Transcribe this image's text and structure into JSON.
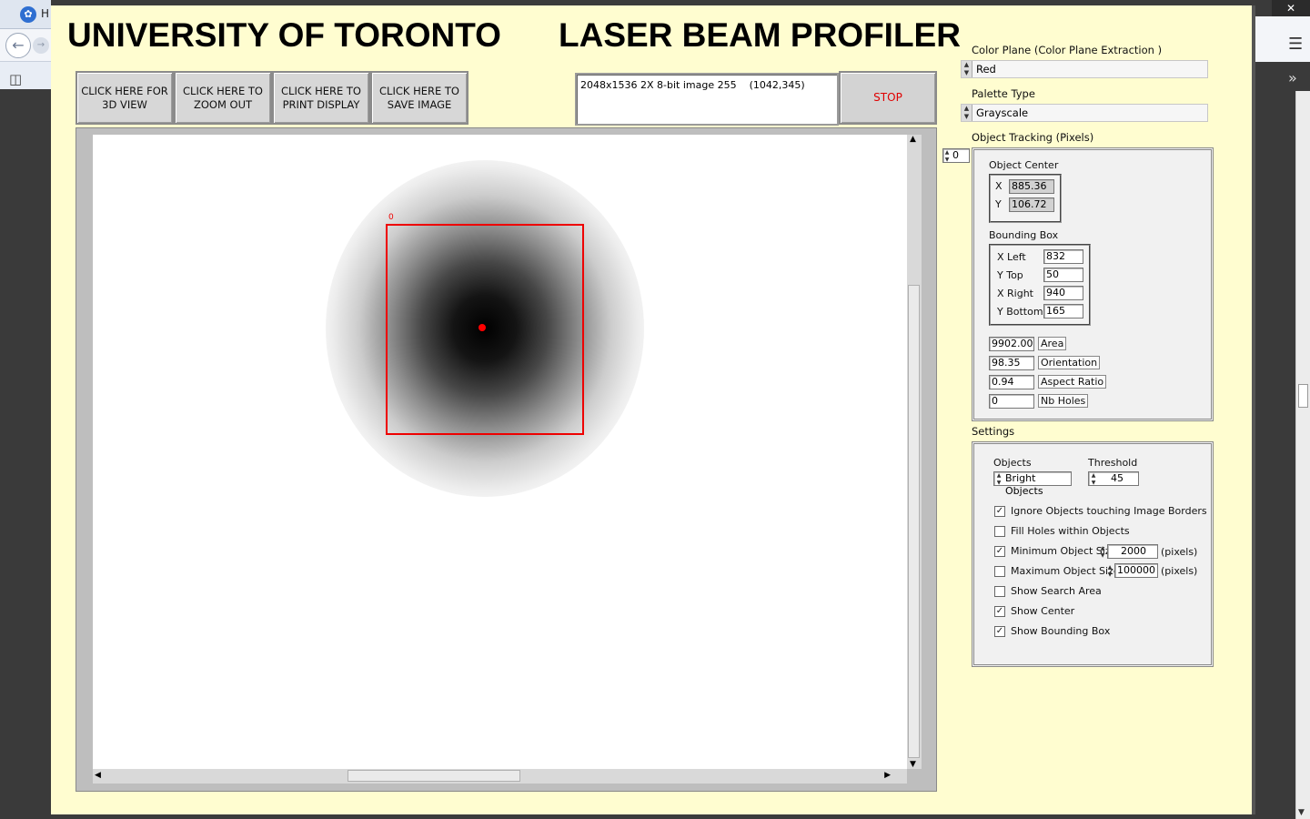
{
  "browser": {
    "tab_title": "H",
    "tab_icon": "labview-icon",
    "close_symbol": "✕",
    "menu_symbol": "☰",
    "more_symbol": "»"
  },
  "header": {
    "university": "UNIVERSITY OF TORONTO",
    "app_title": "LASER BEAM PROFILER"
  },
  "toolbar": {
    "btn_3d": [
      "CLICK HERE FOR",
      "3D VIEW"
    ],
    "btn_zoom": [
      "CLICK HERE TO",
      "ZOOM OUT"
    ],
    "btn_print": [
      "CLICK HERE TO",
      "PRINT DISPLAY"
    ],
    "btn_save": [
      "CLICK HERE TO",
      "SAVE IMAGE"
    ],
    "image_info": "2048x1536 2X 8-bit image 255    (1042,345)",
    "stop_label": "STOP"
  },
  "image": {
    "bbox_index_label": "0"
  },
  "controls": {
    "color_plane_label": "Color Plane (Color Plane Extraction )",
    "color_plane_value": "Red",
    "palette_label": "Palette Type",
    "palette_value": "Grayscale",
    "object_tracking_label": "Object Tracking (Pixels)",
    "object_index": "0"
  },
  "object": {
    "center_label": "Object Center",
    "x_label": "X",
    "x_value": "885.36",
    "y_label": "Y",
    "y_value": "106.72",
    "bbox_label": "Bounding Box",
    "left_label": "X Left",
    "left_value": "832",
    "top_label": "Y Top",
    "top_value": "50",
    "right_label": "X Right",
    "right_value": "940",
    "bottom_label": "Y Bottom",
    "bottom_value": "165",
    "area_value": "9902.00",
    "area_label": "Area",
    "orientation_value": "98.35",
    "orientation_label": "Orientation",
    "aspect_value": "0.94",
    "aspect_label": "Aspect Ratio",
    "holes_value": "0",
    "holes_label": "Nb Holes"
  },
  "settings": {
    "label": "Settings",
    "objects_label": "Objects",
    "objects_value": "Bright Objects",
    "threshold_label": "Threshold",
    "threshold_value": "45",
    "ignore_borders": "Ignore Objects touching Image Borders",
    "fill_holes": "Fill Holes within Objects",
    "min_size_label": "Minimum Object Size",
    "min_size_value": "2000",
    "max_size_label": "Maximum Object Size",
    "max_size_value": "100000",
    "pixels_unit": "(pixels)",
    "show_search": "Show Search Area",
    "show_center": "Show Center",
    "show_bbox": "Show Bounding Box",
    "checked_symbol": "✓"
  }
}
